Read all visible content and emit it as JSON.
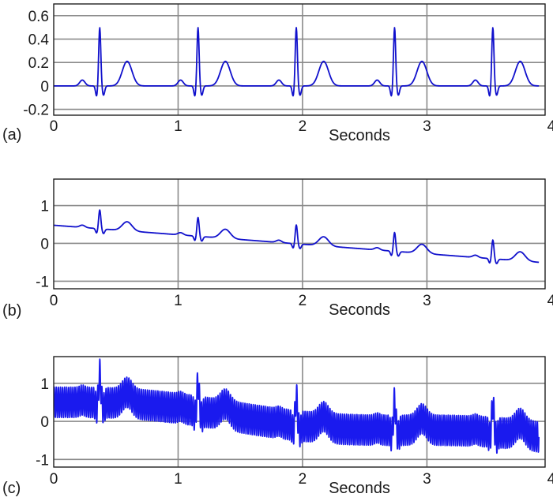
{
  "chart_data": [
    {
      "type": "line",
      "panel_label": "(a)",
      "xlabel": "Seconds",
      "ylabel": "",
      "xlim": [
        0,
        3.95
      ],
      "ylim": [
        -0.25,
        0.7
      ],
      "xticks": [
        "0",
        "1",
        "2",
        "3",
        "4"
      ],
      "yticks": [
        "-0.2",
        "0",
        "0.2",
        "0.4",
        "0.6"
      ],
      "grid": true,
      "series": [
        {
          "color": "#1010cc",
          "beats": [
            0.0,
            0.79,
            1.58,
            2.37,
            3.16
          ],
          "wave": {
            "p_amp": 0.05,
            "q_amp": -0.09,
            "r_amp": 0.5,
            "s_amp": -0.08,
            "t_amp": 0.21,
            "r_time": 0.37
          },
          "baseline_start": 0.0,
          "baseline_end": 0.0,
          "noise_amp": 0.0
        }
      ]
    },
    {
      "type": "line",
      "panel_label": "(b)",
      "xlabel": "Seconds",
      "ylabel": "",
      "xlim": [
        0,
        3.95
      ],
      "ylim": [
        -1.2,
        1.7
      ],
      "xticks": [
        "0",
        "1",
        "2",
        "3",
        "4"
      ],
      "yticks": [
        "-1",
        "0",
        "1"
      ],
      "grid": true,
      "series": [
        {
          "color": "#1010cc",
          "beats": [
            0.0,
            0.79,
            1.58,
            2.37,
            3.16
          ],
          "wave": {
            "p_amp": 0.06,
            "q_amp": -0.12,
            "r_amp": 0.5,
            "s_amp": -0.12,
            "t_amp": 0.24,
            "r_time": 0.37
          },
          "baseline_start": 0.48,
          "baseline_end": -0.5,
          "noise_amp": 0.0
        }
      ]
    },
    {
      "type": "line",
      "panel_label": "(c)",
      "xlabel": "Seconds",
      "ylabel": "",
      "xlim": [
        0,
        3.95
      ],
      "ylim": [
        -1.2,
        1.7
      ],
      "xticks": [
        "0",
        "1",
        "2",
        "3",
        "4"
      ],
      "yticks": [
        "-1",
        "0",
        "1"
      ],
      "grid": true,
      "series": [
        {
          "color": "#1a1aee",
          "beats": [
            0.0,
            0.79,
            1.58,
            2.37,
            3.16
          ],
          "wave": {
            "p_amp": 0.06,
            "q_amp": -0.15,
            "r_amp": 0.75,
            "s_amp": -0.15,
            "t_amp": 0.3,
            "r_time": 0.37
          },
          "baseline_start": 0.5,
          "baseline_end": -0.5,
          "noise_amp": 0.4
        }
      ]
    }
  ]
}
